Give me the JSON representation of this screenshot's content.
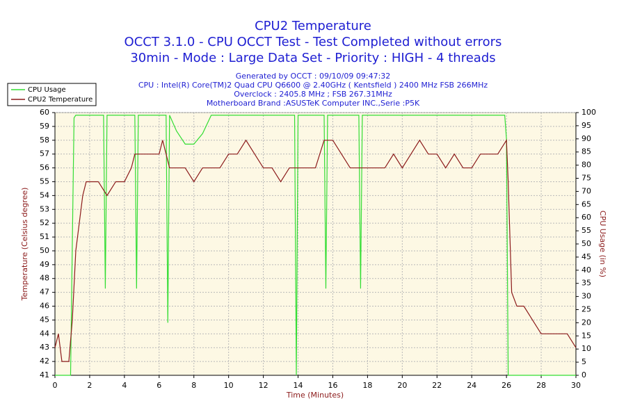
{
  "chart_data": {
    "type": "line",
    "title": "CPU2 Temperature",
    "subtitle_lines": [
      "OCCT 3.1.0 - CPU OCCT Test - Test Completed without errors",
      "30min - Mode : Large Data Set - Priority : HIGH - 4 threads"
    ],
    "info_lines": [
      "Generated by OCCT : 09/10/09 09:47:32",
      "CPU : Intel(R) Core(TM)2 Quad CPU Q6600 @ 2.40GHz ( Kentsfield ) 2400 MHz FSB 266MHz",
      "Overclock : 2405.8 MHz ; FSB 267.31MHz",
      "Motherboard Brand :ASUSTeK Computer INC.,Serie :P5K"
    ],
    "xlabel": "Time (Minutes)",
    "ylabel": "Temperature (Celsius degree)",
    "y2label": "CPU Usage (in %)",
    "xlim": [
      0,
      30
    ],
    "xticks": [
      0,
      2,
      4,
      6,
      8,
      10,
      12,
      14,
      16,
      18,
      20,
      22,
      24,
      26,
      28,
      30
    ],
    "ylim": [
      41,
      60
    ],
    "yticks": [
      41,
      42,
      43,
      44,
      45,
      46,
      47,
      48,
      49,
      50,
      51,
      52,
      53,
      54,
      55,
      56,
      57,
      58,
      59,
      60
    ],
    "y2lim": [
      0,
      100
    ],
    "y2ticks": [
      0,
      5,
      10,
      15,
      20,
      25,
      30,
      35,
      40,
      45,
      50,
      55,
      60,
      65,
      70,
      75,
      80,
      85,
      90,
      95,
      100
    ],
    "grid": true,
    "legend": "upper left",
    "series": [
      {
        "name": "CPU Usage",
        "color": "#33dd33",
        "axis": "y2",
        "x": [
          0,
          0.9,
          1.0,
          1.1,
          1.2,
          2.8,
          2.9,
          3.0,
          4.6,
          4.7,
          4.8,
          6.4,
          6.5,
          6.6,
          7,
          7.5,
          8,
          8.5,
          9,
          10,
          11,
          13.8,
          13.9,
          14.0,
          15.5,
          15.6,
          15.7,
          17.5,
          17.6,
          17.7,
          20,
          22,
          24,
          25.9,
          26.0,
          26.1,
          30
        ],
        "values": [
          0,
          0,
          50,
          98,
          99,
          99,
          33,
          99,
          99,
          33,
          99,
          99,
          20,
          99,
          93,
          88,
          88,
          92,
          99,
          99,
          99,
          99,
          0,
          99,
          99,
          33,
          99,
          99,
          33,
          99,
          99,
          99,
          99,
          99,
          90,
          0,
          0
        ]
      },
      {
        "name": "CPU2 Temperature",
        "color": "#8b1a1a",
        "axis": "y",
        "x": [
          0,
          0.2,
          0.4,
          0.8,
          1.0,
          1.2,
          1.4,
          1.6,
          1.8,
          2.0,
          2.5,
          3.0,
          3.5,
          4.0,
          4.4,
          4.6,
          5,
          5.5,
          6,
          6.2,
          6.4,
          6.6,
          7,
          7.5,
          8,
          8.5,
          9,
          9.5,
          10,
          10.5,
          11,
          11.5,
          12,
          12.5,
          13,
          13.5,
          14,
          14.5,
          15,
          15.5,
          16,
          16.5,
          17,
          17.5,
          18,
          18.5,
          19,
          19.5,
          20,
          20.5,
          21,
          21.5,
          22,
          22.5,
          23,
          23.5,
          24,
          24.5,
          25,
          25.5,
          26,
          26.1,
          26.3,
          26.6,
          27,
          27.5,
          28,
          28.5,
          29,
          29.5,
          30
        ],
        "values": [
          43,
          44,
          42,
          42,
          45,
          50,
          52,
          54,
          55,
          55,
          55,
          54,
          55,
          55,
          56,
          57,
          57,
          57,
          57,
          58,
          57,
          56,
          56,
          56,
          55,
          56,
          56,
          56,
          57,
          57,
          58,
          57,
          56,
          56,
          55,
          56,
          56,
          56,
          56,
          58,
          58,
          57,
          56,
          56,
          56,
          56,
          56,
          57,
          56,
          57,
          58,
          57,
          57,
          56,
          57,
          56,
          56,
          57,
          57,
          57,
          58,
          55,
          47,
          46,
          46,
          45,
          44,
          44,
          44,
          44,
          43
        ]
      }
    ]
  }
}
